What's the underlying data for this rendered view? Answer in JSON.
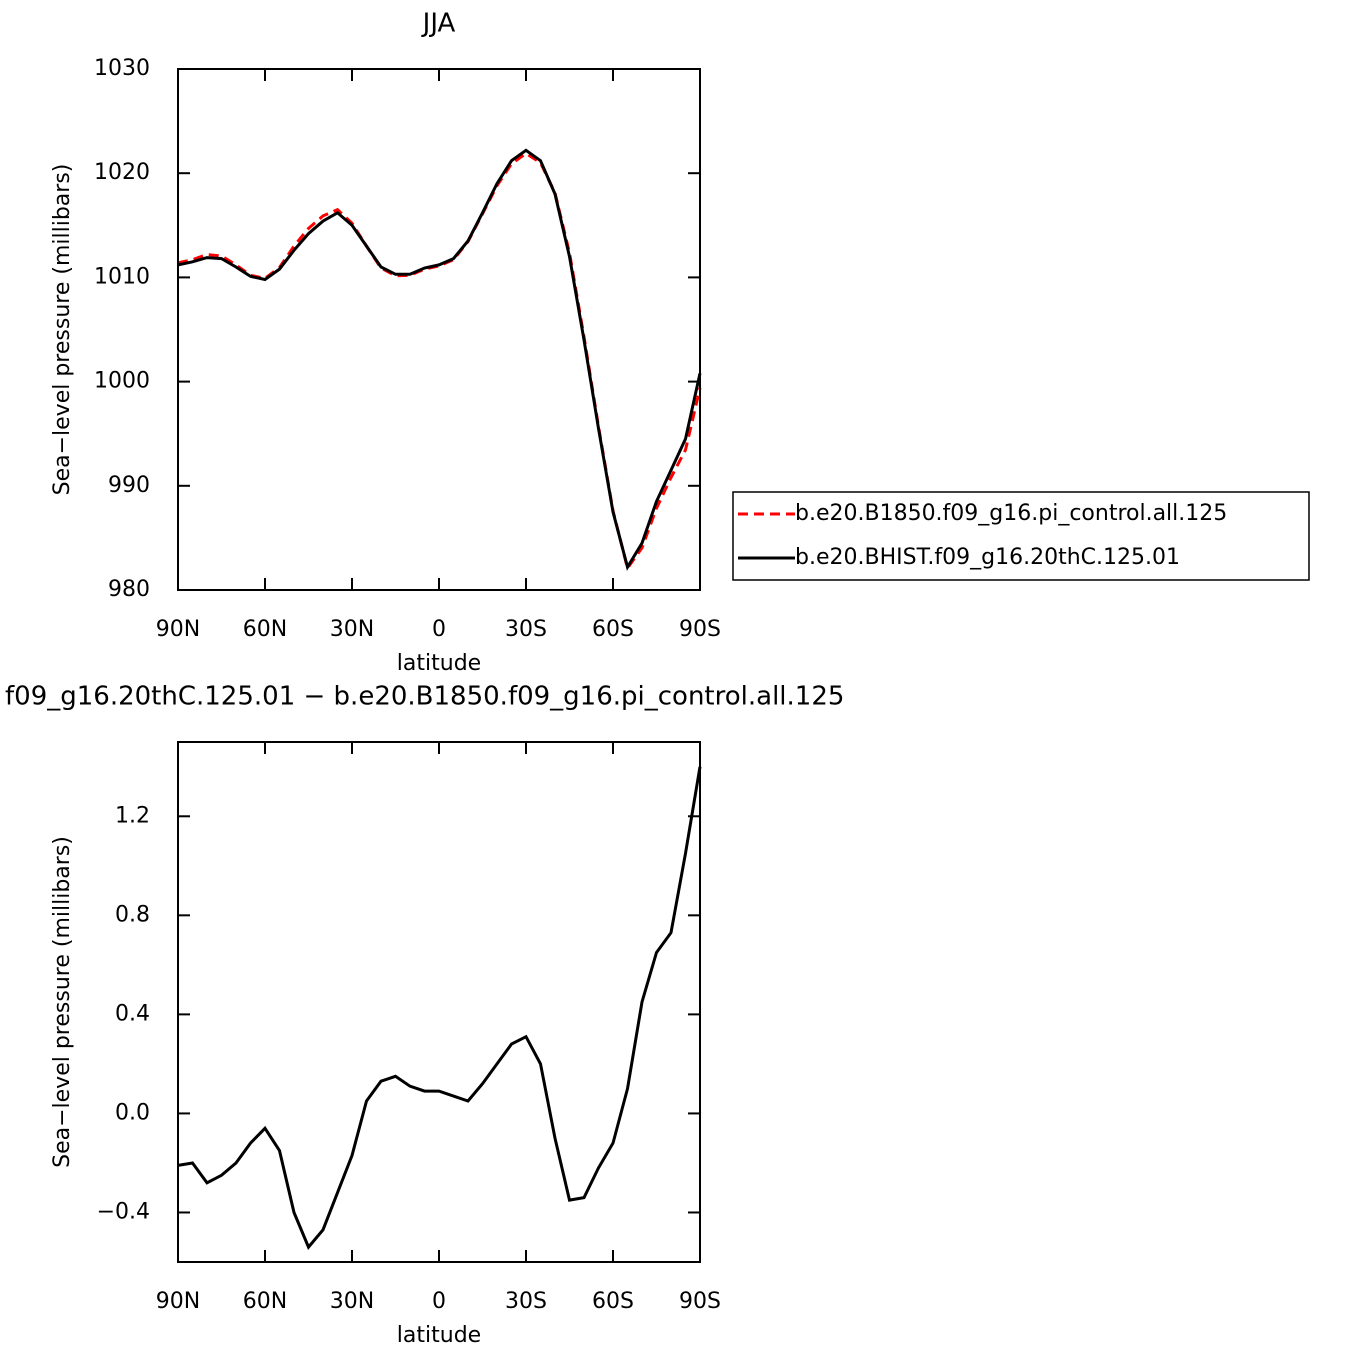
{
  "chart_data": [
    {
      "type": "line",
      "title": "JJA",
      "xlabel": "latitude",
      "ylabel": "Sea−level pressure (millibars)",
      "x": [
        90,
        85,
        80,
        75,
        70,
        65,
        60,
        55,
        50,
        45,
        40,
        35,
        30,
        25,
        20,
        15,
        10,
        5,
        0,
        -5,
        -10,
        -15,
        -20,
        -25,
        -30,
        -35,
        -40,
        -45,
        -50,
        -55,
        -60,
        -65,
        -70,
        -75,
        -80,
        -85,
        -90
      ],
      "series": [
        {
          "name": "b.e20.B1850.f09_g16.pi_control.all.125",
          "color": "#ff0000",
          "line_style": "dashed",
          "values": [
            1011.4,
            1011.7,
            1012.2,
            1012.05,
            1011.2,
            1010.2,
            1009.9,
            1010.95,
            1013.0,
            1014.7,
            1015.9,
            1016.5,
            1015.2,
            1013.0,
            1010.9,
            1010.15,
            1010.2,
            1010.8,
            1011.1,
            1011.7,
            1013.45,
            1016.1,
            1018.8,
            1020.9,
            1021.9,
            1021.0,
            1018.1,
            1012.35,
            1004.3,
            995.7,
            987.6,
            982.1,
            984.05,
            987.85,
            990.8,
            993.45,
            999.4
          ]
        },
        {
          "name": "b.e20.BHIST.f09_g16.20thC.125.01",
          "color": "#000000",
          "line_style": "solid",
          "values": [
            1011.2,
            1011.5,
            1011.9,
            1011.8,
            1011.0,
            1010.1,
            1009.8,
            1010.8,
            1012.6,
            1014.2,
            1015.4,
            1016.2,
            1015.0,
            1013.0,
            1011.0,
            1010.3,
            1010.3,
            1010.9,
            1011.2,
            1011.8,
            1013.5,
            1016.2,
            1019.0,
            1021.2,
            1022.2,
            1021.2,
            1018.0,
            1012.0,
            1004.0,
            995.5,
            987.5,
            982.2,
            984.5,
            988.5,
            991.5,
            994.5,
            1000.8
          ]
        }
      ],
      "xlim": [
        90,
        -90
      ],
      "xticks": [
        {
          "value": 90,
          "label": "90N"
        },
        {
          "value": 60,
          "label": "60N"
        },
        {
          "value": 30,
          "label": "30N"
        },
        0,
        {
          "value": -30,
          "label": "30S"
        },
        {
          "value": -60,
          "label": "60S"
        },
        {
          "value": -90,
          "label": "90S"
        }
      ],
      "ylim": [
        980,
        1030
      ],
      "yticks": [
        980,
        990,
        1000,
        1010,
        1020,
        1030
      ],
      "legend": "right"
    },
    {
      "type": "line",
      "title": "f09_g16.20thC.125.01 − b.e20.B1850.f09_g16.pi_control.all.125",
      "xlabel": "latitude",
      "ylabel": "Sea−level pressure (millibars)",
      "x": [
        90,
        85,
        80,
        75,
        70,
        65,
        60,
        55,
        50,
        45,
        40,
        35,
        30,
        25,
        20,
        15,
        10,
        5,
        0,
        -5,
        -10,
        -15,
        -20,
        -25,
        -30,
        -35,
        -40,
        -45,
        -50,
        -55,
        -60,
        -65,
        -70,
        -75,
        -80,
        -85,
        -90
      ],
      "series": [
        {
          "color": "#000000",
          "line_style": "solid",
          "values": [
            -0.21,
            -0.2,
            -0.28,
            -0.25,
            -0.2,
            -0.12,
            -0.06,
            -0.15,
            -0.4,
            -0.54,
            -0.47,
            -0.32,
            -0.17,
            0.05,
            0.13,
            0.15,
            0.11,
            0.09,
            0.09,
            0.07,
            0.05,
            0.12,
            0.2,
            0.28,
            0.31,
            0.2,
            -0.1,
            -0.35,
            -0.34,
            -0.22,
            -0.12,
            0.1,
            0.45,
            0.65,
            0.73,
            1.05,
            1.4
          ]
        }
      ],
      "xlim": [
        90,
        -90
      ],
      "xticks": [
        {
          "value": 90,
          "label": "90N"
        },
        {
          "value": 60,
          "label": "60N"
        },
        {
          "value": 30,
          "label": "30N"
        },
        0,
        {
          "value": -30,
          "label": "30S"
        },
        {
          "value": -60,
          "label": "60S"
        },
        {
          "value": -90,
          "label": "90S"
        }
      ],
      "ylim": [
        -0.6,
        1.5
      ],
      "yticks": [
        {
          "value": -0.4,
          "label": "−0.4"
        },
        {
          "value": 0,
          "label": "0.0"
        },
        0.4,
        0.8,
        1.2
      ]
    }
  ]
}
